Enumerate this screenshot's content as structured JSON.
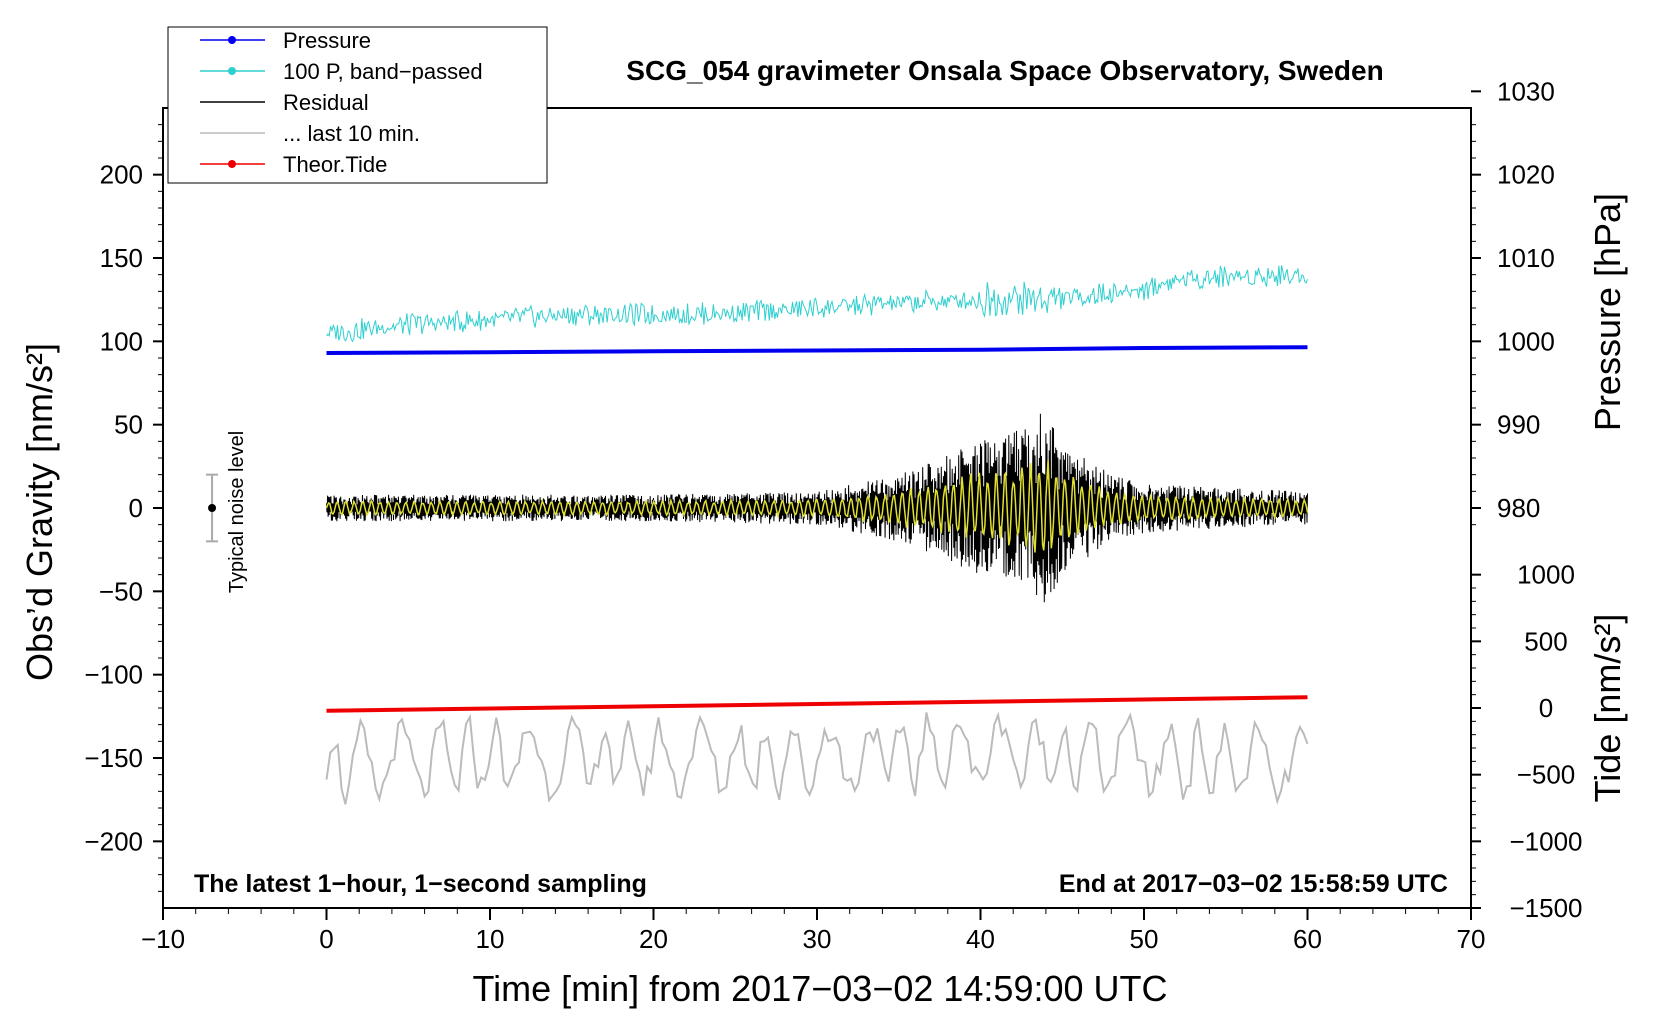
{
  "chart_data": {
    "type": "line",
    "title": "SCG_054 gravimeter Onsala Space Observatory, Sweden",
    "xlabel": "Time [min] from 2017−03−02 14:59:00 UTC",
    "ylabel": "Obs’d Gravity [nm/s²]",
    "ylabel_right_top": "Pressure [hPa]",
    "ylabel_right_bottom": "Tide [nm/s²]",
    "xlim": [
      -10,
      70
    ],
    "ylim": [
      -240,
      240
    ],
    "x_ticks": [
      -10,
      0,
      10,
      20,
      30,
      40,
      50,
      60,
      70
    ],
    "x_tick_labels": [
      "−10",
      "0",
      "10",
      "20",
      "30",
      "40",
      "50",
      "60",
      "70"
    ],
    "y_ticks": [
      200,
      150,
      100,
      50,
      0,
      -50,
      -100,
      -150,
      -200
    ],
    "y_tick_labels": [
      "200",
      "150",
      "100",
      "50",
      "0",
      "−50",
      "−100",
      "−150",
      "−200"
    ],
    "pressure_axis": {
      "ticks": [
        1030,
        1020,
        1010,
        1000,
        990,
        980
      ],
      "tick_labels": [
        "1030",
        "1020",
        "1010",
        "1000",
        "990",
        "980"
      ],
      "gravity_at_1000": 100,
      "gravity_per_hPa": 5
    },
    "tide_axis": {
      "ticks": [
        1000,
        500,
        0,
        -500,
        -1000,
        -1500
      ],
      "tick_labels": [
        "1000",
        "500",
        "0",
        "−500",
        "−1000",
        "−1500"
      ],
      "gravity_at_0": -120,
      "gravity_per_unit": 0.08
    },
    "legend": {
      "placement": "top-left",
      "entries": [
        {
          "label": "Pressure",
          "color": "#0000ee",
          "marker": true
        },
        {
          "label": "100 P, band−passed",
          "color": "#2ecfcf",
          "marker": true
        },
        {
          "label": "Residual",
          "color": "#000000",
          "marker": false
        },
        {
          "label": "... last 10 min.",
          "color": "#bbbbbb",
          "marker": false
        },
        {
          "label": "Theor.Tide",
          "color": "#ee0000",
          "marker": true
        }
      ]
    },
    "noise_marker": {
      "label": "Typical noise level",
      "x": -7,
      "center": 0,
      "halfwidth": 20
    },
    "annotation_left": "The latest 1−hour, 1−second sampling",
    "annotation_right": "End at 2017−03−02 15:58:59 UTC",
    "series": [
      {
        "name": "Pressure",
        "color": "#0000ee",
        "axis": "pressure",
        "x": [
          0,
          10,
          20,
          30,
          40,
          50,
          60
        ],
        "values": [
          998.6,
          998.7,
          998.8,
          998.9,
          999.0,
          999.2,
          999.3
        ]
      },
      {
        "name": "100 P, band-passed",
        "color": "#2ecfcf",
        "axis": "gravity",
        "x": [
          0,
          5,
          10,
          15,
          20,
          25,
          30,
          35,
          40,
          45,
          50,
          52,
          55,
          60
        ],
        "values": [
          105,
          110,
          113,
          116,
          116,
          117,
          120,
          123,
          125,
          126,
          131,
          137,
          139,
          140
        ]
      },
      {
        "name": "Residual",
        "color": "#000000",
        "axis": "gravity",
        "x": [
          0,
          10,
          20,
          30,
          35,
          40,
          42,
          44,
          45,
          48,
          50,
          55,
          60
        ],
        "values": [
          8,
          8,
          8,
          10,
          20,
          40,
          45,
          60,
          40,
          20,
          15,
          12,
          10
        ]
      },
      {
        "name": "... last 10 min.",
        "color": "#bbbbbb",
        "axis": "gravity",
        "x": [
          0,
          10,
          20,
          30,
          40,
          50,
          60
        ],
        "values": [
          -155,
          -150,
          -150,
          -150,
          -145,
          -150,
          -155
        ]
      },
      {
        "name": "Theor.Tide",
        "color": "#ee0000",
        "axis": "tide",
        "x": [
          0,
          60
        ],
        "values": [
          -20,
          80
        ]
      }
    ]
  }
}
